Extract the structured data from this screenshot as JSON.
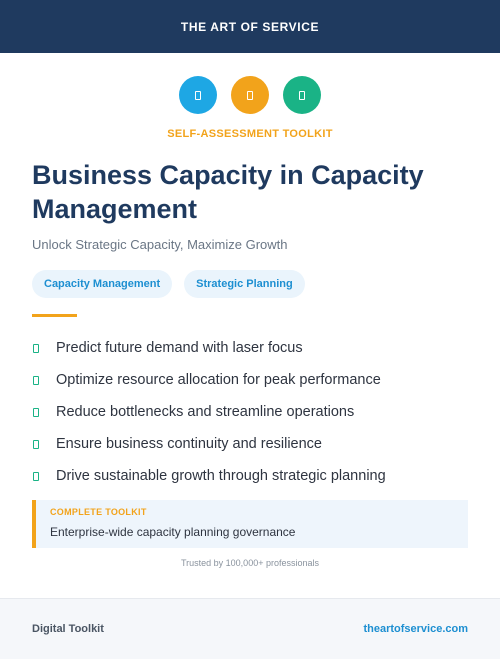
{
  "header": {
    "brand": "THE ART OF SERVICE",
    "background": "#1f3a5f"
  },
  "icons": [
    {
      "name": "document-icon",
      "color": "#1ea7e4"
    },
    {
      "name": "document-icon",
      "color": "#f2a31b"
    },
    {
      "name": "document-icon",
      "color": "#1ab386"
    }
  ],
  "eyebrow": {
    "text": "SELF-ASSESSMENT TOOLKIT",
    "color": "#f2a31b"
  },
  "title": "Business Capacity in Capacity Management",
  "subtitle": "Unlock Strategic Capacity, Maximize Growth",
  "tags": [
    "Capacity Management",
    "Strategic Planning"
  ],
  "accent_color": "#f2a31b",
  "benefits": [
    "Predict future demand with laser focus",
    "Optimize resource allocation for peak performance",
    "Reduce bottlenecks and streamline operations",
    "Ensure business continuity and resilience",
    "Drive sustainable growth through strategic planning"
  ],
  "callout": {
    "label": "COMPLETE TOOLKIT",
    "text": "Enterprise-wide capacity planning governance"
  },
  "trusted": "Trusted by 100,000+ professionals",
  "footer": {
    "left": "Digital Toolkit",
    "right": "theartofservice.com"
  }
}
